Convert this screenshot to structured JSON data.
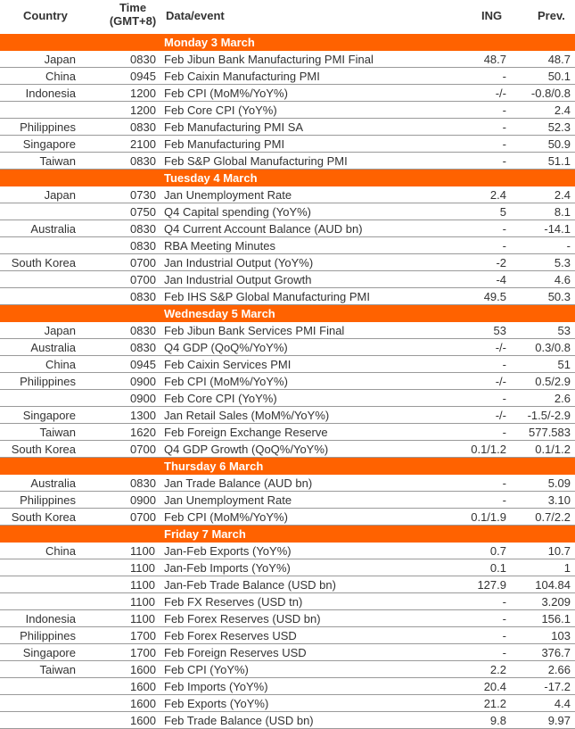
{
  "header": {
    "country": "Country",
    "time_line1": "Time",
    "time_line2": "(GMT+8)",
    "event": "Data/event",
    "ing": "ING",
    "prev": "Prev."
  },
  "days": [
    {
      "title": "Monday 3 March",
      "rows": [
        {
          "country": "Japan",
          "time": "0830",
          "event": "Feb Jibun Bank Manufacturing PMI Final",
          "ing": "48.7",
          "prev": "48.7"
        },
        {
          "country": "China",
          "time": "0945",
          "event": "Feb Caixin Manufacturing PMI",
          "ing": "-",
          "prev": "50.1"
        },
        {
          "country": "Indonesia",
          "time": "1200",
          "event": "Feb CPI (MoM%/YoY%)",
          "ing": "-/-",
          "prev": "-0.8/0.8"
        },
        {
          "country": "",
          "time": "1200",
          "event": "Feb Core CPI (YoY%)",
          "ing": "-",
          "prev": "2.4"
        },
        {
          "country": "Philippines",
          "time": "0830",
          "event": "Feb Manufacturing PMI SA",
          "ing": "-",
          "prev": "52.3"
        },
        {
          "country": "Singapore",
          "time": "2100",
          "event": "Feb Manufacturing PMI",
          "ing": "-",
          "prev": "50.9"
        },
        {
          "country": "Taiwan",
          "time": "0830",
          "event": "Feb S&P Global Manufacturing PMI",
          "ing": "-",
          "prev": "51.1"
        }
      ]
    },
    {
      "title": "Tuesday 4 March",
      "rows": [
        {
          "country": "Japan",
          "time": "0730",
          "event": "Jan Unemployment Rate",
          "ing": "2.4",
          "prev": "2.4"
        },
        {
          "country": "",
          "time": "0750",
          "event": "Q4 Capital spending (YoY%)",
          "ing": "5",
          "prev": "8.1"
        },
        {
          "country": "Australia",
          "time": "0830",
          "event": "Q4 Current Account Balance (AUD bn)",
          "ing": "-",
          "prev": "-14.1"
        },
        {
          "country": "",
          "time": "0830",
          "event": "RBA Meeting Minutes",
          "ing": "-",
          "prev": "-"
        },
        {
          "country": "South Korea",
          "time": "0700",
          "event": "Jan Industrial Output (YoY%)",
          "ing": "-2",
          "prev": "5.3"
        },
        {
          "country": "",
          "time": "0700",
          "event": "Jan Industrial Output Growth",
          "ing": "-4",
          "prev": "4.6"
        },
        {
          "country": "",
          "time": "0830",
          "event": "Feb IHS S&P Global Manufacturing PMI",
          "ing": "49.5",
          "prev": "50.3"
        }
      ]
    },
    {
      "title": "Wednesday 5 March",
      "rows": [
        {
          "country": "Japan",
          "time": "0830",
          "event": "Feb Jibun Bank Services PMI Final",
          "ing": "53",
          "prev": "53"
        },
        {
          "country": "Australia",
          "time": "0830",
          "event": "Q4 GDP (QoQ%/YoY%)",
          "ing": "-/-",
          "prev": "0.3/0.8"
        },
        {
          "country": "China",
          "time": "0945",
          "event": "Feb Caixin Services PMI",
          "ing": "-",
          "prev": "51"
        },
        {
          "country": "Philippines",
          "time": "0900",
          "event": "Feb CPI (MoM%/YoY%)",
          "ing": "-/-",
          "prev": "0.5/2.9"
        },
        {
          "country": "",
          "time": "0900",
          "event": "Feb Core CPI (YoY%)",
          "ing": "-",
          "prev": "2.6"
        },
        {
          "country": "Singapore",
          "time": "1300",
          "event": "Jan Retail Sales (MoM%/YoY%)",
          "ing": "-/-",
          "prev": "-1.5/-2.9"
        },
        {
          "country": "Taiwan",
          "time": "1620",
          "event": "Feb Foreign Exchange Reserve",
          "ing": "-",
          "prev": "577.583"
        },
        {
          "country": "South Korea",
          "time": "0700",
          "event": "Q4 GDP Growth (QoQ%/YoY%)",
          "ing": "0.1/1.2",
          "prev": "0.1/1.2"
        }
      ]
    },
    {
      "title": "Thursday 6 March",
      "rows": [
        {
          "country": "Australia",
          "time": "0830",
          "event": "Jan Trade Balance (AUD bn)",
          "ing": "-",
          "prev": "5.09"
        },
        {
          "country": "Philippines",
          "time": "0900",
          "event": "Jan Unemployment Rate",
          "ing": "-",
          "prev": "3.10"
        },
        {
          "country": "South Korea",
          "time": "0700",
          "event": "Feb CPI (MoM%/YoY%)",
          "ing": "0.1/1.9",
          "prev": "0.7/2.2"
        }
      ]
    },
    {
      "title": "Friday 7 March",
      "rows": [
        {
          "country": "China",
          "time": "1100",
          "event": "Jan-Feb Exports (YoY%)",
          "ing": "0.7",
          "prev": "10.7"
        },
        {
          "country": "",
          "time": "1100",
          "event": "Jan-Feb Imports (YoY%)",
          "ing": "0.1",
          "prev": "1"
        },
        {
          "country": "",
          "time": "1100",
          "event": "Jan-Feb Trade Balance (USD bn)",
          "ing": "127.9",
          "prev": "104.84"
        },
        {
          "country": "",
          "time": "1100",
          "event": "Feb FX Reserves (USD tn)",
          "ing": "-",
          "prev": "3.209"
        },
        {
          "country": "Indonesia",
          "time": "1100",
          "event": "Feb Forex Reserves (USD bn)",
          "ing": "-",
          "prev": "156.1"
        },
        {
          "country": "Philippines",
          "time": "1700",
          "event": "Feb Forex Reserves USD",
          "ing": "-",
          "prev": "103"
        },
        {
          "country": "Singapore",
          "time": "1700",
          "event": "Feb Foreign Reserves USD",
          "ing": "-",
          "prev": "376.7"
        },
        {
          "country": "Taiwan",
          "time": "1600",
          "event": "Feb CPI (YoY%)",
          "ing": "2.2",
          "prev": "2.66"
        },
        {
          "country": "",
          "time": "1600",
          "event": "Feb Imports (YoY%)",
          "ing": "20.4",
          "prev": "-17.2"
        },
        {
          "country": "",
          "time": "1600",
          "event": "Feb Exports (YoY%)",
          "ing": "21.2",
          "prev": "4.4"
        },
        {
          "country": "",
          "time": "1600",
          "event": "Feb Trade Balance (USD bn)",
          "ing": "9.8",
          "prev": "9.97"
        }
      ]
    }
  ],
  "colors": {
    "accent": "#ff6200",
    "text": "#333333",
    "rule": "#9a9a9a"
  }
}
